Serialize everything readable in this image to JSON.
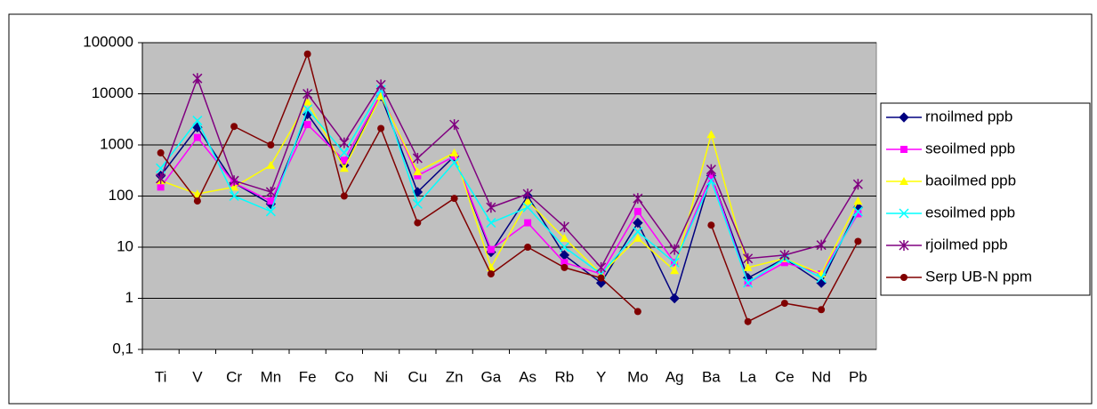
{
  "chart_data": {
    "type": "line",
    "yscale": "log",
    "categories": [
      "Ti",
      "V",
      "Cr",
      "Mn",
      "Fe",
      "Co",
      "Ni",
      "Cu",
      "Zn",
      "Ga",
      "As",
      "Rb",
      "Y",
      "Mo",
      "Ag",
      "Ba",
      "La",
      "Ce",
      "Nd",
      "Pb"
    ],
    "ylim": [
      0.1,
      100000
    ],
    "yticks": [
      {
        "value": 0.1,
        "label": "0,1"
      },
      1,
      10,
      100,
      1000,
      10000,
      100000
    ],
    "grid": true,
    "legend": "right",
    "series": [
      {
        "name": "rnoilmed ppb",
        "color": "#000080",
        "marker": "diamond",
        "values": [
          250,
          2200,
          180,
          70,
          4000,
          400,
          9000,
          120,
          600,
          8,
          100,
          7,
          2,
          30,
          1,
          250,
          2.5,
          6,
          2,
          60
        ]
      },
      {
        "name": "seoilmed ppb",
        "color": "#ff00ff",
        "marker": "square",
        "values": [
          150,
          1400,
          180,
          80,
          2500,
          500,
          10000,
          250,
          600,
          9,
          30,
          5,
          3,
          50,
          5,
          250,
          2,
          5,
          3,
          45
        ]
      },
      {
        "name": "baoilmed ppb",
        "color": "#ffff00",
        "marker": "triangle",
        "values": [
          200,
          110,
          150,
          400,
          7000,
          350,
          9000,
          300,
          700,
          4,
          80,
          15,
          3,
          15,
          3.5,
          1600,
          4,
          6,
          3,
          80
        ]
      },
      {
        "name": "esoilmed ppb",
        "color": "#00ffff",
        "marker": "x",
        "values": [
          350,
          3000,
          100,
          50,
          5000,
          700,
          12000,
          70,
          450,
          30,
          60,
          10,
          3,
          20,
          5,
          200,
          2,
          6,
          2.5,
          50
        ]
      },
      {
        "name": "rjoilmed ppb",
        "color": "#800080",
        "marker": "asterisk",
        "values": [
          220,
          20000,
          200,
          120,
          10000,
          1100,
          15000,
          550,
          2500,
          60,
          110,
          25,
          4,
          90,
          9,
          330,
          6,
          7,
          11,
          170
        ]
      },
      {
        "name": "Serp UB-N ppm",
        "color": "#800000",
        "marker": "circle",
        "values": [
          700,
          80,
          2300,
          1000,
          60000,
          100,
          2100,
          30,
          90,
          3,
          10,
          4,
          2.5,
          0.55,
          null,
          27,
          0.35,
          0.8,
          0.6,
          13
        ]
      }
    ]
  }
}
